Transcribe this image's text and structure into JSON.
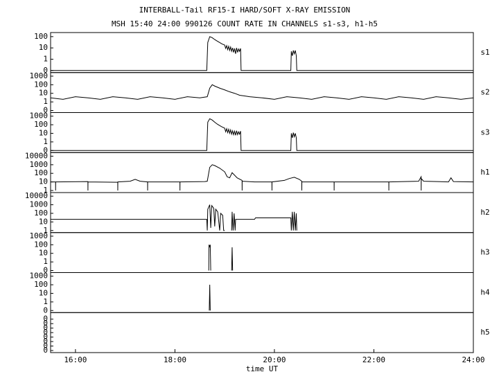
{
  "chart_data": [
    {
      "type": "line",
      "title": "INTERBALL-Tail RF15-I HARD/SOFT X-RAY EMISSION",
      "subtitle": "MSH 15:40 24:00 990126  COUNT RATE IN CHANNELS s1-s3, h1-h5",
      "label": "s1",
      "color": "#000000",
      "yscale": "symlog",
      "xlim": [
        15.5,
        24
      ],
      "ylim": [
        0,
        150
      ],
      "yticks": [
        0,
        1,
        10,
        100
      ],
      "x": [
        15.5,
        18.64,
        18.66,
        18.7,
        18.75,
        18.8,
        18.85,
        18.9,
        18.95,
        19.0,
        19.02,
        19.04,
        19.06,
        19.08,
        19.1,
        19.12,
        19.14,
        19.16,
        19.18,
        19.2,
        19.22,
        19.24,
        19.26,
        19.28,
        19.3,
        19.32,
        19.33,
        20.33,
        20.34,
        20.36,
        20.38,
        20.4,
        20.42,
        20.44,
        20.45,
        24
      ],
      "values": [
        0,
        0,
        30,
        100,
        80,
        55,
        40,
        30,
        22,
        18,
        9,
        16,
        7,
        14,
        6,
        12,
        5,
        10,
        4,
        9,
        3,
        10,
        4,
        8,
        5,
        9,
        0,
        0,
        5,
        2,
        6,
        3,
        6,
        2,
        0,
        0
      ]
    },
    {
      "type": "line",
      "label": "s2",
      "color": "#000000",
      "yscale": "symlog",
      "xlim": [
        15.5,
        24
      ],
      "ylim": [
        0,
        1500
      ],
      "yticks": [
        0,
        1,
        10,
        100,
        1000
      ],
      "x": [
        15.5,
        15.75,
        16,
        16.25,
        16.5,
        16.75,
        17,
        17.25,
        17.5,
        17.75,
        18,
        18.25,
        18.5,
        18.65,
        18.7,
        18.75,
        18.8,
        18.9,
        19,
        19.1,
        19.2,
        19.3,
        19.4,
        19.5,
        19.75,
        20,
        20.25,
        20.5,
        20.75,
        21,
        21.25,
        21.5,
        21.75,
        22,
        22.25,
        22.5,
        22.75,
        23,
        23.25,
        23.5,
        23.75,
        24
      ],
      "values": [
        3,
        2,
        4,
        3,
        2,
        4,
        3,
        2,
        4,
        3,
        2,
        4,
        3,
        4,
        40,
        100,
        70,
        40,
        25,
        15,
        10,
        6,
        5,
        4,
        3,
        2,
        4,
        3,
        2,
        4,
        3,
        2,
        4,
        3,
        2,
        4,
        3,
        2,
        4,
        3,
        2,
        3
      ]
    },
    {
      "type": "line",
      "label": "s3",
      "color": "#000000",
      "yscale": "symlog",
      "xlim": [
        15.5,
        24
      ],
      "ylim": [
        0,
        1500
      ],
      "yticks": [
        0,
        1,
        10,
        100,
        1000
      ],
      "x": [
        15.5,
        18.64,
        18.66,
        18.7,
        18.75,
        18.8,
        18.85,
        18.9,
        18.95,
        19.0,
        19.02,
        19.04,
        19.06,
        19.08,
        19.1,
        19.12,
        19.14,
        19.16,
        19.18,
        19.2,
        19.22,
        19.24,
        19.26,
        19.28,
        19.3,
        19.32,
        19.33,
        20.33,
        20.34,
        20.36,
        20.38,
        20.4,
        20.42,
        20.44,
        20.45,
        24
      ],
      "values": [
        0,
        0,
        200,
        500,
        350,
        200,
        120,
        80,
        55,
        40,
        15,
        35,
        12,
        30,
        10,
        25,
        8,
        20,
        7,
        18,
        6,
        20,
        7,
        15,
        8,
        18,
        0,
        0,
        10,
        3,
        12,
        4,
        10,
        3,
        0,
        0
      ]
    },
    {
      "type": "line",
      "label": "h1",
      "color": "#000000",
      "yscale": "symlog",
      "xlim": [
        15.5,
        24
      ],
      "ylim": [
        1,
        15000
      ],
      "yticks": [
        1,
        10,
        100,
        1000,
        10000
      ],
      "x": [
        15.5,
        15.6,
        15.601,
        15.602,
        16.25,
        16.251,
        16.252,
        16.85,
        16.851,
        16.852,
        17.1,
        17.2,
        17.3,
        17.45,
        17.451,
        17.452,
        18.1,
        18.101,
        18.102,
        18.6,
        18.65,
        18.7,
        18.75,
        18.8,
        18.9,
        19.0,
        19.05,
        19.1,
        19.15,
        19.25,
        19.35,
        19.351,
        19.352,
        19.6,
        19.95,
        19.951,
        19.952,
        20.2,
        20.3,
        20.4,
        20.5,
        20.55,
        20.551,
        20.552,
        21.2,
        21.201,
        21.202,
        22.3,
        22.301,
        22.302,
        22.9,
        22.95,
        22.951,
        22.952,
        23.0,
        23.5,
        23.55,
        23.6,
        24
      ],
      "values": [
        10,
        10,
        1,
        10,
        11,
        1,
        10,
        9,
        1,
        10,
        12,
        20,
        12,
        10,
        1,
        10,
        10,
        1,
        10,
        11,
        12,
        500,
        1000,
        800,
        400,
        150,
        40,
        30,
        120,
        30,
        15,
        1,
        12,
        10,
        10,
        1,
        10,
        15,
        25,
        35,
        20,
        12,
        1,
        10,
        10,
        1,
        10,
        10,
        1,
        10,
        12,
        40,
        1,
        25,
        12,
        10,
        30,
        11,
        10
      ]
    },
    {
      "type": "line",
      "label": "h2",
      "color": "#000000",
      "yscale": "symlog",
      "xlim": [
        15.5,
        24
      ],
      "ylim": [
        1,
        15000
      ],
      "yticks": [
        1,
        10,
        100,
        1000,
        10000
      ],
      "x": [
        15.5,
        18.64,
        18.65,
        18.66,
        18.7,
        18.72,
        18.74,
        18.78,
        18.8,
        18.82,
        18.86,
        18.9,
        18.92,
        18.96,
        18.98,
        19.0,
        19.07,
        19.14,
        19.15,
        19.17,
        19.19,
        19.21,
        19.22,
        19.6,
        19.62,
        20.33,
        20.34,
        20.36,
        20.38,
        20.4,
        20.42,
        20.44,
        20.45
      ],
      "values": [
        20,
        20,
        1,
        300,
        1000,
        2,
        800,
        400,
        3,
        300,
        150,
        1,
        100,
        60,
        1,
        1,
        null,
        1,
        150,
        1,
        100,
        1,
        20,
        20,
        30,
        30,
        1,
        150,
        1,
        150,
        1,
        100,
        1
      ]
    },
    {
      "type": "line",
      "label": "h3",
      "color": "#000000",
      "yscale": "symlog",
      "xlim": [
        15.5,
        24
      ],
      "ylim": [
        0,
        1500
      ],
      "yticks": [
        0,
        1,
        10,
        100,
        1000
      ],
      "x": [
        18.68,
        18.685,
        18.7,
        18.71,
        18.72,
        19.0,
        19.14,
        19.15,
        19.16
      ],
      "values": [
        0,
        100,
        60,
        100,
        0,
        null,
        0,
        50,
        0
      ]
    },
    {
      "type": "line",
      "label": "h4",
      "color": "#000000",
      "yscale": "symlog",
      "xlim": [
        15.5,
        24
      ],
      "ylim": [
        0,
        1500
      ],
      "yticks": [
        0,
        1,
        10,
        100,
        1000
      ],
      "x": [
        18.69,
        18.7,
        18.71
      ],
      "values": [
        0,
        100,
        0
      ]
    },
    {
      "type": "line",
      "label": "h5",
      "color": "#000000",
      "yscale": "linear",
      "xlim": [
        15.5,
        24
      ],
      "ylim": [
        0,
        0.4
      ],
      "yticks": [
        {
          "value": 0,
          "label": "0"
        },
        {
          "value": 0.05,
          "label": "0"
        },
        {
          "value": 0.1,
          "label": "0"
        },
        {
          "value": 0.15,
          "label": "0"
        },
        {
          "value": 0.2,
          "label": "0"
        },
        {
          "value": 0.25,
          "label": "0"
        },
        {
          "value": 0.3,
          "label": "0"
        },
        {
          "value": 0.35,
          "label": "0"
        }
      ],
      "xlabel": "time UT",
      "xticks": [
        {
          "value": 16,
          "label": "16:00"
        },
        {
          "value": 18,
          "label": "18:00"
        },
        {
          "value": 20,
          "label": "20:00"
        },
        {
          "value": 22,
          "label": "22:00"
        },
        {
          "value": 24,
          "label": "24:00"
        }
      ]
    }
  ]
}
